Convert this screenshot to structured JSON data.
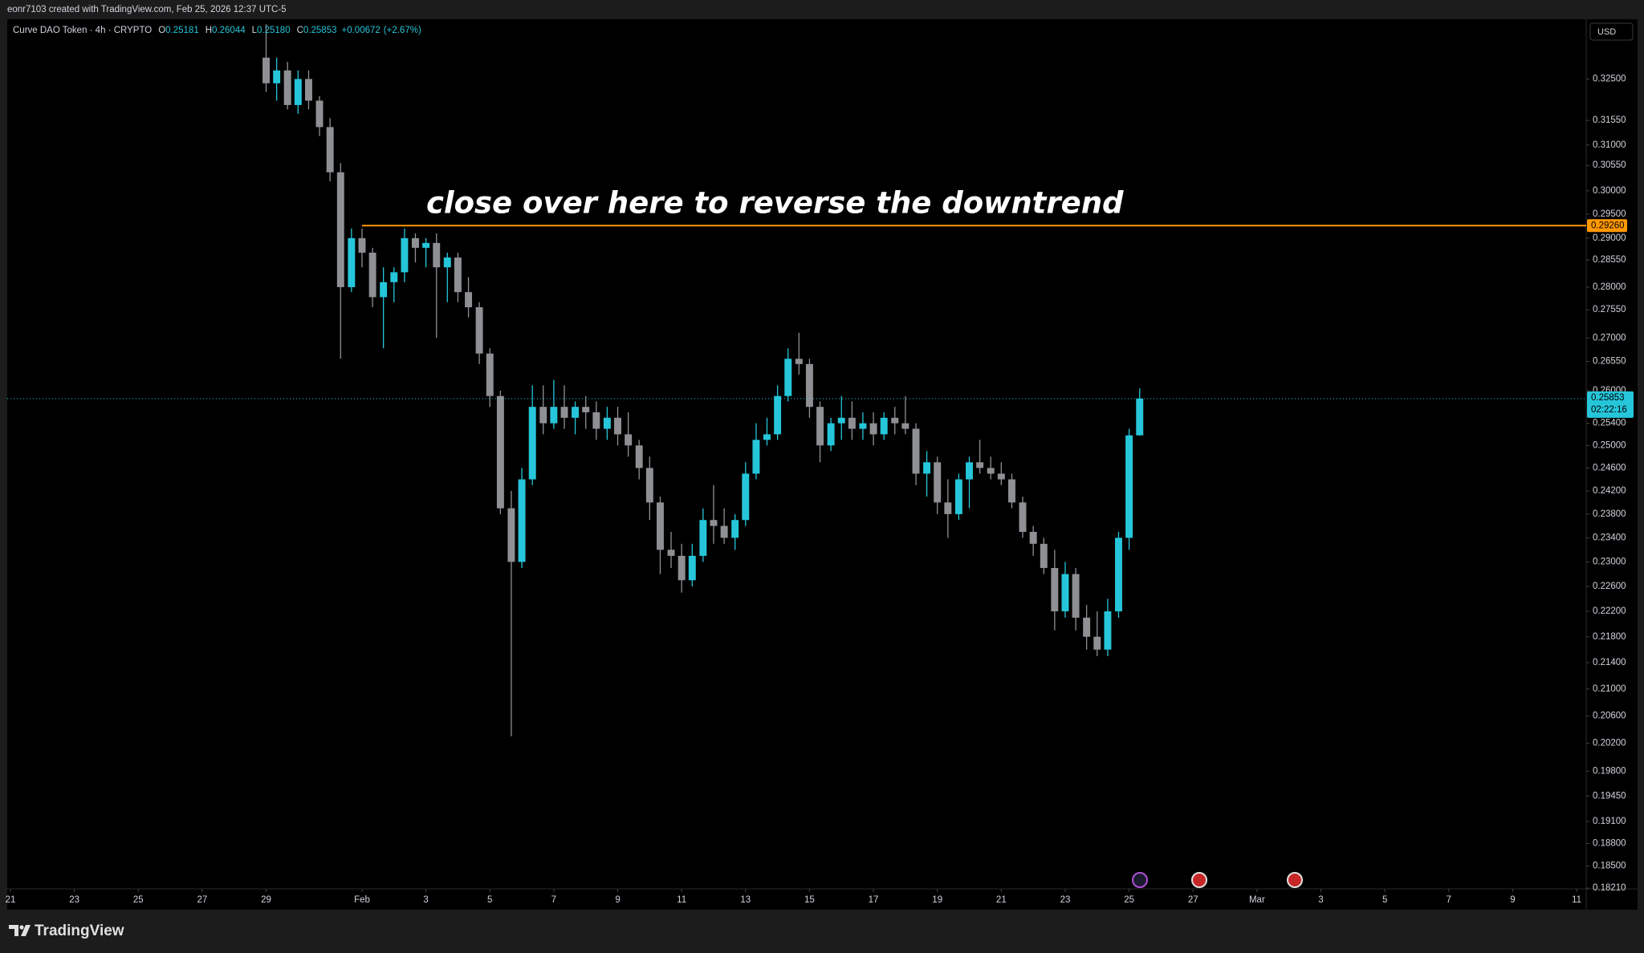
{
  "header": {
    "credit": "eonr7103 created with TradingView.com, Feb 25, 2026 12:37 UTC-5",
    "currency": "USD",
    "footer": "TradingView"
  },
  "chart_data": {
    "type": "candlestick",
    "symbol": "Curve DAO Token · 4h · CRYPTO",
    "legend": {
      "open": {
        "name": "O",
        "value": 0.25181,
        "label": "0.25181"
      },
      "high": {
        "name": "H",
        "value": 0.26044,
        "label": "0.26044"
      },
      "low": {
        "name": "L",
        "value": 0.2518,
        "label": "0.25180"
      },
      "close": {
        "name": "C",
        "value": 0.25853,
        "label": "0.25853"
      },
      "change": {
        "value": 0.00672,
        "label": "+0.00672"
      },
      "change_pct": {
        "value": 2.67,
        "label": "(+2.67%)"
      }
    },
    "annotation": "close over here to reverse the downtrend",
    "level": {
      "value": 0.2926,
      "label": "0.29260",
      "x_start": 11,
      "color": "#ff9800"
    },
    "last_price": {
      "value": 0.25853,
      "label": "0.25853",
      "countdown": "02:22:16",
      "color": "#26c6da"
    },
    "up_color": "#26c6da",
    "down_color": "#8f9094",
    "log_scale": true,
    "grid": false,
    "xlim": [
      -0.1,
      49.3
    ],
    "ylim": [
      0.182,
      0.3392
    ],
    "xticks": [
      {
        "value": 0,
        "label": "21"
      },
      {
        "value": 2,
        "label": "23"
      },
      {
        "value": 4,
        "label": "25"
      },
      {
        "value": 6,
        "label": "27"
      },
      {
        "value": 8,
        "label": "29"
      },
      {
        "value": 11,
        "label": "Feb"
      },
      {
        "value": 13,
        "label": "3"
      },
      {
        "value": 15,
        "label": "5"
      },
      {
        "value": 17,
        "label": "7"
      },
      {
        "value": 19,
        "label": "9"
      },
      {
        "value": 21,
        "label": "11"
      },
      {
        "value": 23,
        "label": "13"
      },
      {
        "value": 25,
        "label": "15"
      },
      {
        "value": 27,
        "label": "17"
      },
      {
        "value": 29,
        "label": "19"
      },
      {
        "value": 31,
        "label": "21"
      },
      {
        "value": 33,
        "label": "23"
      },
      {
        "value": 35,
        "label": "25"
      },
      {
        "value": 37,
        "label": "27"
      },
      {
        "value": 39,
        "label": "Mar"
      },
      {
        "value": 41,
        "label": "3"
      },
      {
        "value": 43,
        "label": "5"
      },
      {
        "value": 45,
        "label": "7"
      },
      {
        "value": 47,
        "label": "9"
      },
      {
        "value": 49,
        "label": "11"
      }
    ],
    "yticks": [
      {
        "value": 0.325,
        "label": "0.32500"
      },
      {
        "value": 0.3155,
        "label": "0.31550"
      },
      {
        "value": 0.31,
        "label": "0.31000"
      },
      {
        "value": 0.3055,
        "label": "0.30550"
      },
      {
        "value": 0.3,
        "label": "0.30000"
      },
      {
        "value": 0.295,
        "label": "0.29500"
      },
      {
        "value": 0.29,
        "label": "0.29000"
      },
      {
        "value": 0.2855,
        "label": "0.28550"
      },
      {
        "value": 0.28,
        "label": "0.28000"
      },
      {
        "value": 0.2755,
        "label": "0.27550"
      },
      {
        "value": 0.27,
        "label": "0.27000"
      },
      {
        "value": 0.2655,
        "label": "0.26550"
      },
      {
        "value": 0.26,
        "label": "0.26000"
      },
      {
        "value": 0.254,
        "label": "0.25400"
      },
      {
        "value": 0.25,
        "label": "0.25000"
      },
      {
        "value": 0.246,
        "label": "0.24600"
      },
      {
        "value": 0.242,
        "label": "0.24200"
      },
      {
        "value": 0.238,
        "label": "0.23800"
      },
      {
        "value": 0.234,
        "label": "0.23400"
      },
      {
        "value": 0.23,
        "label": "0.23000"
      },
      {
        "value": 0.226,
        "label": "0.22600"
      },
      {
        "value": 0.222,
        "label": "0.22200"
      },
      {
        "value": 0.218,
        "label": "0.21800"
      },
      {
        "value": 0.214,
        "label": "0.21400"
      },
      {
        "value": 0.21,
        "label": "0.21000"
      },
      {
        "value": 0.206,
        "label": "0.20600"
      },
      {
        "value": 0.202,
        "label": "0.20200"
      },
      {
        "value": 0.198,
        "label": "0.19800"
      },
      {
        "value": 0.1945,
        "label": "0.19450"
      },
      {
        "value": 0.191,
        "label": "0.19100"
      },
      {
        "value": 0.188,
        "label": "0.18800"
      },
      {
        "value": 0.185,
        "label": "0.18500"
      },
      {
        "value": 0.1821,
        "label": "0.18210"
      }
    ],
    "x": [
      8,
      8.33,
      8.67,
      9,
      9.33,
      9.67,
      10,
      10.33,
      10.67,
      11,
      11.33,
      11.67,
      12,
      12.33,
      12.67,
      13,
      13.33,
      13.67,
      14,
      14.33,
      14.67,
      15,
      15.33,
      15.67,
      16,
      16.33,
      16.67,
      17,
      17.33,
      17.67,
      18,
      18.33,
      18.67,
      19,
      19.33,
      19.67,
      20,
      20.33,
      20.67,
      21,
      21.33,
      21.67,
      22,
      22.33,
      22.67,
      23,
      23.33,
      23.67,
      24,
      24.33,
      24.67,
      25,
      25.33,
      25.67,
      26,
      26.33,
      26.67,
      27,
      27.33,
      27.67,
      28,
      28.33,
      28.67,
      29,
      29.33,
      29.67,
      30,
      30.33,
      30.67,
      31,
      31.33,
      31.67,
      32,
      32.33,
      32.67,
      33,
      33.33,
      33.67,
      34,
      34.33,
      34.67,
      35,
      35.33
    ],
    "open": [
      0.33,
      0.324,
      0.327,
      0.319,
      0.325,
      0.32,
      0.314,
      0.304,
      0.28,
      0.29,
      0.287,
      0.278,
      0.281,
      0.283,
      0.29,
      0.288,
      0.289,
      0.284,
      0.286,
      0.279,
      0.276,
      0.267,
      0.259,
      0.239,
      0.23,
      0.244,
      0.257,
      0.254,
      0.257,
      0.255,
      0.257,
      0.256,
      0.253,
      0.255,
      0.252,
      0.25,
      0.246,
      0.24,
      0.232,
      0.231,
      0.227,
      0.231,
      0.237,
      0.236,
      0.234,
      0.237,
      0.245,
      0.251,
      0.252,
      0.259,
      0.266,
      0.265,
      0.257,
      0.25,
      0.254,
      0.255,
      0.253,
      0.254,
      0.252,
      0.255,
      0.254,
      0.253,
      0.245,
      0.247,
      0.24,
      0.238,
      0.244,
      0.247,
      0.246,
      0.245,
      0.244,
      0.24,
      0.235,
      0.233,
      0.229,
      0.222,
      0.228,
      0.221,
      0.218,
      0.216,
      0.222,
      0.234,
      0.25181
    ],
    "high": [
      0.338,
      0.33,
      0.329,
      0.327,
      0.327,
      0.321,
      0.316,
      0.306,
      0.292,
      0.292,
      0.288,
      0.284,
      0.284,
      0.292,
      0.291,
      0.29,
      0.291,
      0.287,
      0.287,
      0.282,
      0.277,
      0.268,
      0.26,
      0.242,
      0.246,
      0.261,
      0.261,
      0.262,
      0.261,
      0.258,
      0.259,
      0.258,
      0.257,
      0.257,
      0.256,
      0.251,
      0.248,
      0.241,
      0.235,
      0.233,
      0.233,
      0.239,
      0.243,
      0.239,
      0.238,
      0.247,
      0.254,
      0.255,
      0.261,
      0.268,
      0.271,
      0.266,
      0.258,
      0.255,
      0.259,
      0.258,
      0.256,
      0.256,
      0.256,
      0.257,
      0.259,
      0.254,
      0.249,
      0.248,
      0.244,
      0.245,
      0.248,
      0.251,
      0.248,
      0.247,
      0.245,
      0.241,
      0.236,
      0.234,
      0.232,
      0.23,
      0.229,
      0.223,
      0.222,
      0.224,
      0.235,
      0.253,
      0.26044
    ],
    "low": [
      0.322,
      0.32,
      0.318,
      0.317,
      0.318,
      0.312,
      0.302,
      0.266,
      0.279,
      0.284,
      0.276,
      0.268,
      0.277,
      0.281,
      0.285,
      0.284,
      0.27,
      0.277,
      0.277,
      0.274,
      0.265,
      0.257,
      0.238,
      0.203,
      0.229,
      0.243,
      0.252,
      0.253,
      0.253,
      0.252,
      0.253,
      0.251,
      0.251,
      0.25,
      0.248,
      0.244,
      0.237,
      0.228,
      0.229,
      0.225,
      0.226,
      0.23,
      0.233,
      0.233,
      0.232,
      0.236,
      0.244,
      0.25,
      0.251,
      0.258,
      0.263,
      0.255,
      0.247,
      0.249,
      0.251,
      0.251,
      0.251,
      0.25,
      0.251,
      0.252,
      0.252,
      0.243,
      0.241,
      0.238,
      0.234,
      0.237,
      0.239,
      0.245,
      0.244,
      0.243,
      0.239,
      0.234,
      0.231,
      0.228,
      0.219,
      0.221,
      0.219,
      0.216,
      0.215,
      0.215,
      0.221,
      0.232,
      0.2518
    ],
    "close": [
      0.324,
      0.327,
      0.319,
      0.325,
      0.32,
      0.314,
      0.304,
      0.28,
      0.29,
      0.287,
      0.278,
      0.281,
      0.283,
      0.29,
      0.288,
      0.289,
      0.284,
      0.286,
      0.279,
      0.276,
      0.267,
      0.259,
      0.239,
      0.23,
      0.244,
      0.257,
      0.254,
      0.257,
      0.255,
      0.257,
      0.256,
      0.253,
      0.255,
      0.252,
      0.25,
      0.246,
      0.24,
      0.232,
      0.231,
      0.227,
      0.231,
      0.237,
      0.236,
      0.234,
      0.237,
      0.245,
      0.251,
      0.252,
      0.259,
      0.266,
      0.265,
      0.257,
      0.25,
      0.254,
      0.255,
      0.253,
      0.254,
      0.252,
      0.255,
      0.254,
      0.253,
      0.245,
      0.247,
      0.24,
      0.238,
      0.244,
      0.247,
      0.246,
      0.245,
      0.244,
      0.24,
      0.235,
      0.233,
      0.229,
      0.222,
      0.228,
      0.221,
      0.218,
      0.216,
      0.222,
      0.234,
      0.25181,
      0.25853
    ]
  }
}
